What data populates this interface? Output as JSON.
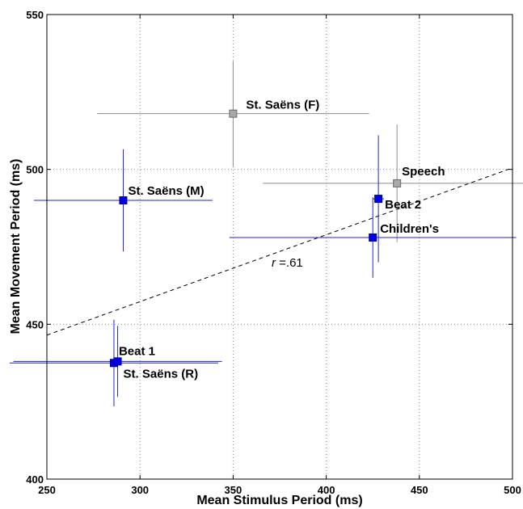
{
  "chart_data": {
    "type": "scatter",
    "xlabel": "Mean Stimulus Period (ms)",
    "ylabel": "Mean Movement Period (ms)",
    "xlim": [
      250,
      500
    ],
    "ylim": [
      400,
      550
    ],
    "xticks": [
      "250",
      "300",
      "350",
      "400",
      "450",
      "500"
    ],
    "yticks": [
      "400",
      "450",
      "500",
      "550"
    ],
    "grid": true,
    "points": [
      {
        "label": "St. Saëns (F)",
        "x": 350,
        "y": 518,
        "x_err": 73,
        "y_err": 17,
        "color": "#a8a8a8",
        "edge": "#6a6a6a",
        "bar_color": "#8c8c8c"
      },
      {
        "label": "St. Saëns (M)",
        "x": 291,
        "y": 490,
        "x_err": 48,
        "y_err": 16.5,
        "color": "#0000e6",
        "edge": "#00009a",
        "bar_color": "#2222cc"
      },
      {
        "label": "Speech",
        "x": 438,
        "y": 495.5,
        "x_err": 72,
        "y_err": 19,
        "color": "#a8a8a8",
        "edge": "#6a6a6a",
        "bar_color": "#8c8c8c"
      },
      {
        "label": "Beat 2",
        "x": 428,
        "y": 490.5,
        "x_err": 3,
        "y_err": 20.5,
        "color": "#0000e6",
        "edge": "#00009a",
        "bar_color": "#2222cc"
      },
      {
        "label": "Children's",
        "x": 425,
        "y": 478,
        "x_err": 77,
        "y_err": 13,
        "color": "#0000e6",
        "edge": "#00009a",
        "bar_color": "#2222cc"
      },
      {
        "label": "Beat 1",
        "x": 286,
        "y": 437.5,
        "x_err": 56,
        "y_err": 14,
        "color": "#0000e6",
        "edge": "#00009a",
        "bar_color": "#2222cc"
      },
      {
        "label": "St. Saëns (R)",
        "x": 288,
        "y": 438,
        "x_err": 56,
        "y_err": 11.5,
        "color": "#0000e6",
        "edge": "#00009a",
        "bar_color": "#2222cc"
      }
    ],
    "regression_line": {
      "x": [
        250,
        500
      ],
      "y": [
        446.5,
        500.5
      ]
    },
    "annotation_r": "r",
    "annotation_val": " =.61"
  }
}
